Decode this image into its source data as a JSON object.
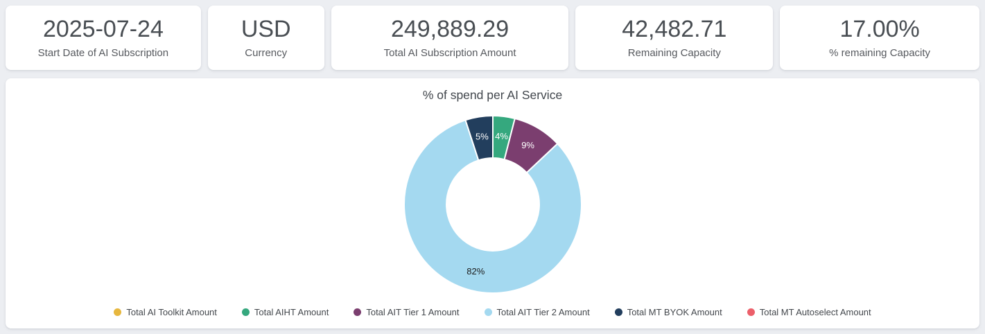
{
  "page": {
    "background_color": "#eceef2",
    "card_background_color": "#ffffff"
  },
  "kpi_cards": [
    {
      "value": "2025-07-24",
      "label": "Start Date of AI Subscription"
    },
    {
      "value": "USD",
      "label": "Currency"
    },
    {
      "value": "249,889.29",
      "label": "Total AI Subscription Amount"
    },
    {
      "value": "42,482.71",
      "label": "Remaining Capacity"
    },
    {
      "value": "17.00%",
      "label": "% remaining Capacity"
    }
  ],
  "chart_data": {
    "type": "pie",
    "subtype": "donut",
    "title": "% of spend per AI Service",
    "inner_radius_ratio": 0.523,
    "start_angle_deg": 0,
    "direction": "clockwise",
    "legend_position": "bottom",
    "series": [
      {
        "name": "Total AI Toolkit Amount",
        "percent": 0,
        "color": "#e7b73e"
      },
      {
        "name": "Total AIHT Amount",
        "percent": 4,
        "color": "#35a87e",
        "label": "4%",
        "label_color": "#ffffff"
      },
      {
        "name": "Total AIT Tier 1 Amount",
        "percent": 9,
        "color": "#7b3e6f",
        "label": "9%",
        "label_color": "#ffffff"
      },
      {
        "name": "Total AIT Tier 2 Amount",
        "percent": 82,
        "color": "#a4d9f0",
        "label": "82%",
        "label_color": "#1c1c1c"
      },
      {
        "name": "Total MT BYOK Amount",
        "percent": 5,
        "color": "#223e5d",
        "label": "5%",
        "label_color": "#ffffff"
      },
      {
        "name": "Total MT Autoselect Amount",
        "percent": 0,
        "color": "#ec5f6a"
      }
    ]
  }
}
